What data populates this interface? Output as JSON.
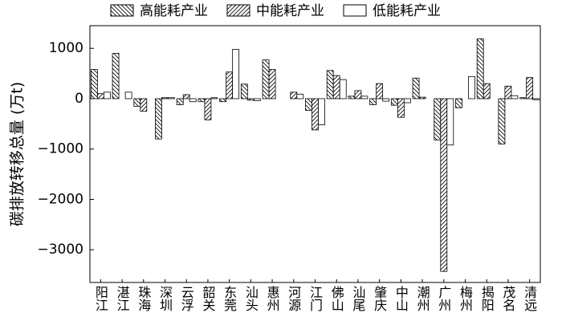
{
  "chart_data": {
    "type": "bar",
    "y_label": "碳排放转移总量 (万t)",
    "categories": [
      "阳江",
      "湛江",
      "珠海",
      "深圳",
      "云浮",
      "韶关",
      "东莞",
      "汕头",
      "惠州",
      "河源",
      "江门",
      "佛山",
      "汕尾",
      "肇庆",
      "中山",
      "潮州",
      "广州",
      "梅州",
      "揭阳",
      "茂名",
      "清远"
    ],
    "series": [
      {
        "name": "高能耗产业",
        "color": "#000000",
        "values": [
          580,
          900,
          -150,
          -800,
          -120,
          -60,
          -60,
          290,
          770,
          0,
          -230,
          560,
          50,
          -120,
          -130,
          410,
          -820,
          -180,
          1190,
          -900,
          20
        ]
      },
      {
        "name": "中能耗产业",
        "color": "#000000",
        "values": [
          100,
          0,
          -250,
          20,
          80,
          -420,
          530,
          -30,
          580,
          130,
          -620,
          460,
          160,
          300,
          -370,
          30,
          -3430,
          0,
          300,
          250,
          420
        ]
      },
      {
        "name": "低能耗产业",
        "color": "#000000",
        "values": [
          130,
          130,
          0,
          20,
          -60,
          20,
          980,
          -40,
          0,
          90,
          -520,
          380,
          50,
          -50,
          -80,
          0,
          -920,
          440,
          0,
          60,
          -20
        ]
      }
    ],
    "ylim": [
      -3650,
      1450
    ],
    "yticks": [
      {
        "value": -3000,
        "label": "−3000"
      },
      {
        "value": -2000,
        "label": "−2000"
      },
      {
        "value": -1000,
        "label": "−1000"
      },
      0,
      1000
    ],
    "legend": "top"
  }
}
